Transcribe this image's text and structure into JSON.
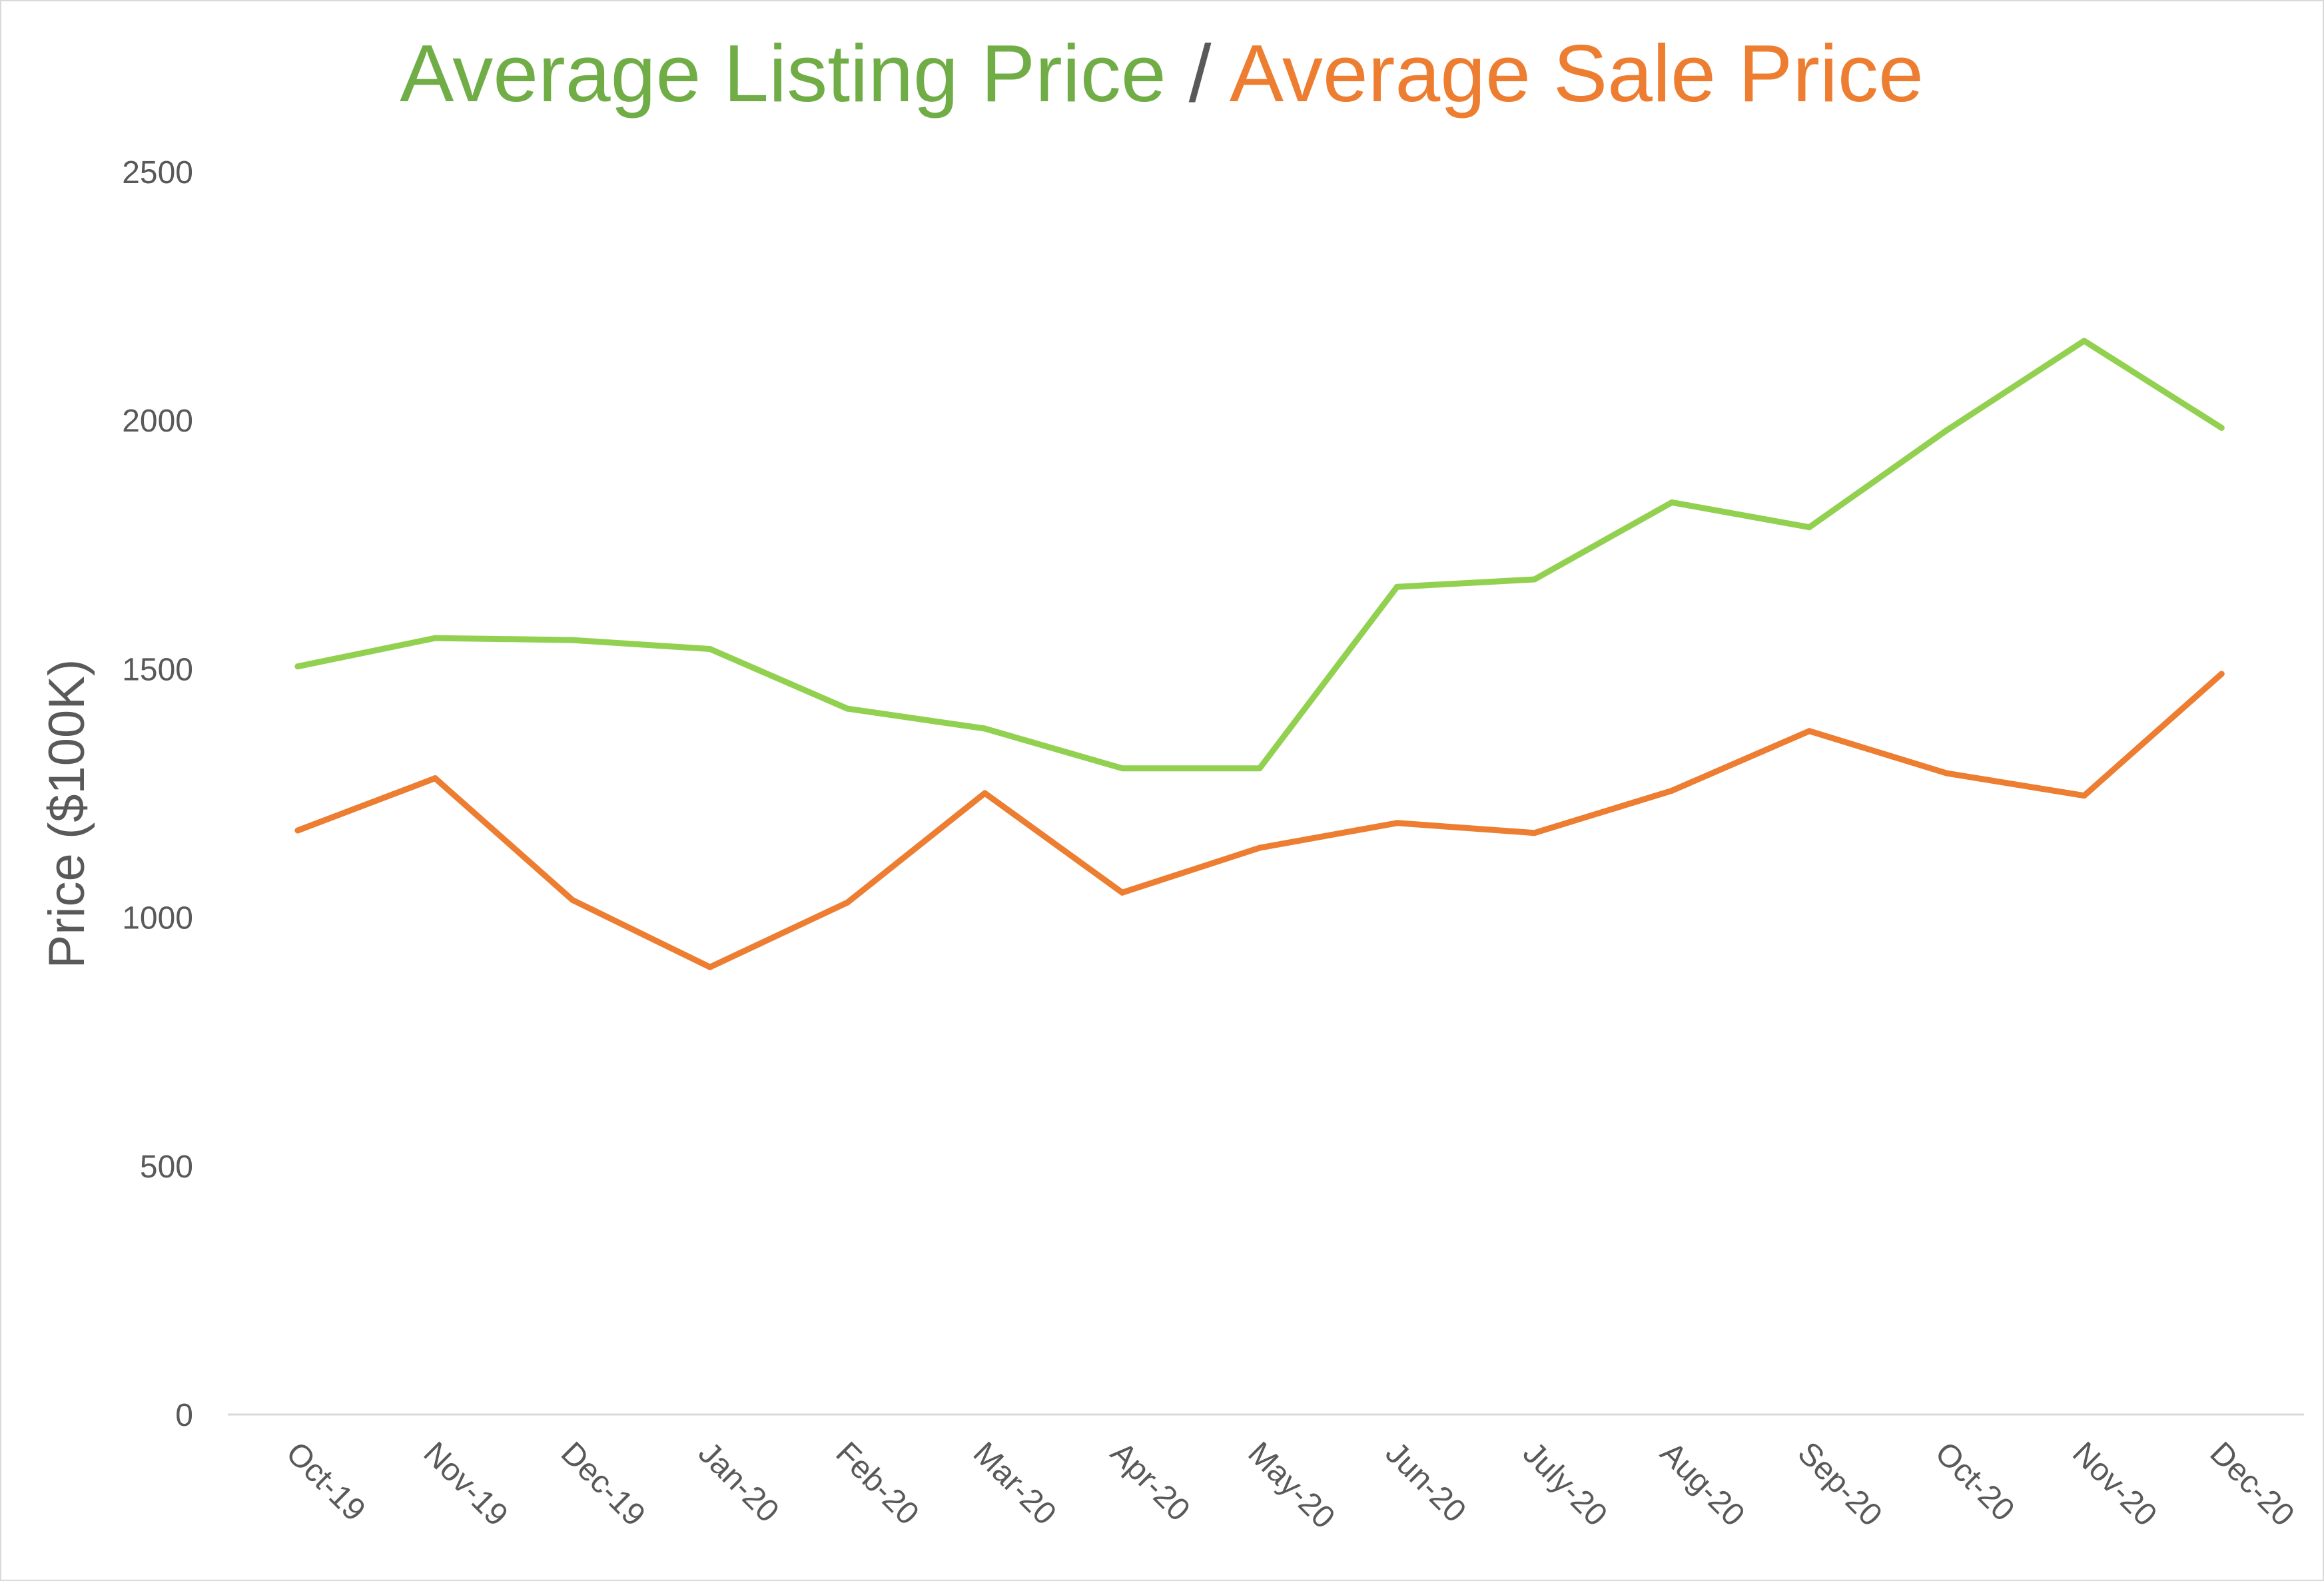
{
  "chart_data": {
    "type": "line",
    "title": {
      "part1": "Average Listing Price",
      "separator": " / ",
      "part2": "Average Sale Price"
    },
    "xlabel": "",
    "ylabel": "Price ($100K)",
    "ylim": [
      0,
      2500
    ],
    "yticks": [
      0,
      500,
      1000,
      1500,
      2000,
      2500
    ],
    "ytick_labels": [
      "0",
      "500",
      "1000",
      "1500",
      "2000",
      "2500"
    ],
    "grid": false,
    "legend": "none",
    "categories": [
      "Oct-19",
      "Nov-19",
      "Dec-19",
      "Jan-20",
      "Feb-20",
      "Mar-20",
      "Apr-20",
      "May-20",
      "Jun-20",
      "July-20",
      "Aug-20",
      "Sep-20",
      "Oct-20",
      "Nov-20",
      "Dec-20"
    ],
    "series": [
      {
        "key": "listing",
        "color": "#92d050",
        "title_color": "#70ad47",
        "values": [
          1505,
          1562,
          1558,
          1540,
          1420,
          1380,
          1300,
          1300,
          1665,
          1680,
          1835,
          1785,
          1980,
          2160,
          1985
        ]
      },
      {
        "key": "sale",
        "color": "#ed7d31",
        "title_color": "#ed7d31",
        "values": [
          1175,
          1280,
          1035,
          900,
          1030,
          1250,
          1050,
          1140,
          1190,
          1170,
          1255,
          1375,
          1290,
          1245,
          1490
        ]
      }
    ],
    "colors": {
      "separator": "#595959",
      "axis_line": "#d9d9d9",
      "text": "#595959"
    }
  }
}
